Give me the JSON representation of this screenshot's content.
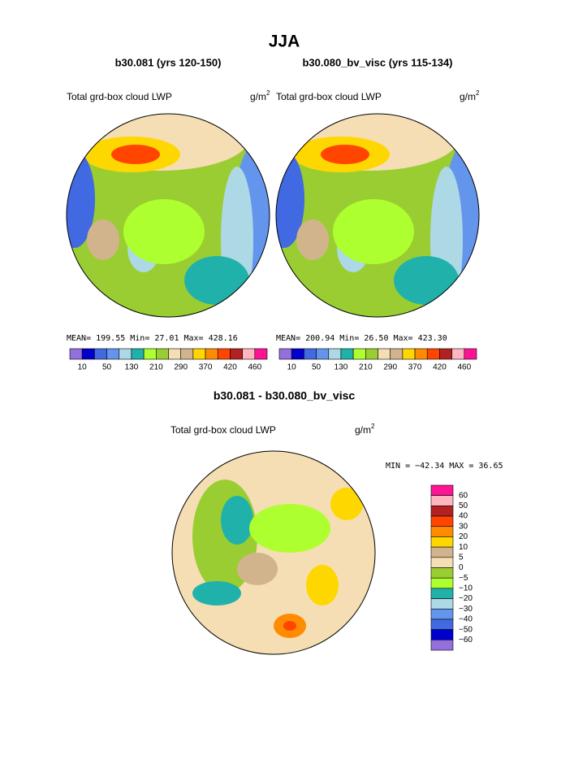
{
  "title": "JJA",
  "panels": [
    {
      "subtitle": "b30.081 (yrs 120-150)",
      "field": "Total grd-box cloud LWP",
      "unit": "g/m",
      "unit_sup": "2",
      "stats": "MEAN=  199.55  Min=   27.01  Max= 428.16"
    },
    {
      "subtitle": "b30.080_bv_visc (yrs 115-134)",
      "field": "Total grd-box cloud LWP",
      "unit": "g/m",
      "unit_sup": "2",
      "stats": "MEAN=  200.94  Min=   26.50  Max= 423.30"
    }
  ],
  "colorbar": {
    "colors": [
      "#9370db",
      "#0000cd",
      "#4169e1",
      "#6495ed",
      "#add8e6",
      "#20b2aa",
      "#adff2f",
      "#9acd32",
      "#f5deb3",
      "#d2b48c",
      "#ffd700",
      "#ff8c00",
      "#ff4500",
      "#b22222",
      "#ffb6c1",
      "#ff1493"
    ],
    "labels": [
      "10",
      "50",
      "130",
      "210",
      "290",
      "370",
      "420",
      "460"
    ]
  },
  "diff": {
    "title": "b30.081 - b30.080_bv_visc",
    "field": "Total grd-box cloud LWP",
    "unit": "g/m",
    "unit_sup": "2",
    "stats": "MIN = −42.34 MAX =  36.65",
    "colors": [
      "#ff1493",
      "#ffb6c1",
      "#b22222",
      "#ff4500",
      "#ff8c00",
      "#ffd700",
      "#d2b48c",
      "#f5deb3",
      "#9acd32",
      "#adff2f",
      "#20b2aa",
      "#add8e6",
      "#6495ed",
      "#4169e1",
      "#0000cd",
      "#9370db"
    ],
    "labels": [
      "60",
      "50",
      "40",
      "30",
      "20",
      "10",
      "5",
      "0",
      "−5",
      "−10",
      "−20",
      "−30",
      "−40",
      "−50",
      "−60"
    ]
  }
}
